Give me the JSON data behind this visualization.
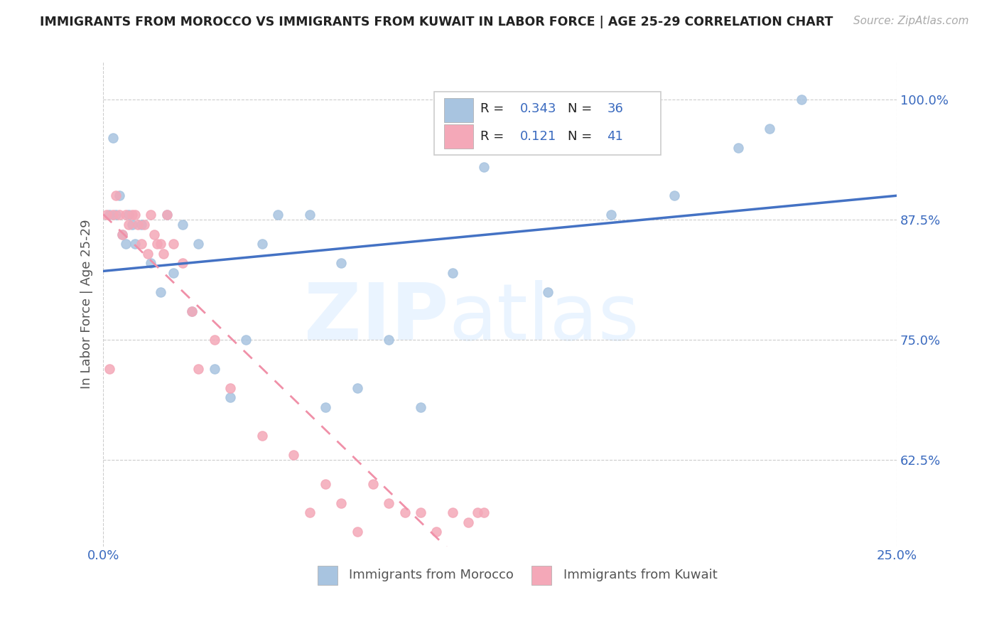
{
  "title": "IMMIGRANTS FROM MOROCCO VS IMMIGRANTS FROM KUWAIT IN LABOR FORCE | AGE 25-29 CORRELATION CHART",
  "source": "Source: ZipAtlas.com",
  "ylabel": "In Labor Force | Age 25-29",
  "xlim": [
    0.0,
    0.25
  ],
  "ylim": [
    0.535,
    1.04
  ],
  "yticks": [
    0.625,
    0.75,
    0.875,
    1.0
  ],
  "ytick_labels": [
    "62.5%",
    "75.0%",
    "87.5%",
    "100.0%"
  ],
  "xticks": [
    0.0,
    0.25
  ],
  "xtick_labels": [
    "0.0%",
    "25.0%"
  ],
  "morocco_R": 0.343,
  "morocco_N": 36,
  "kuwait_R": 0.121,
  "kuwait_N": 41,
  "morocco_color": "#a8c4e0",
  "kuwait_color": "#f4a8b8",
  "morocco_line_color": "#4472c4",
  "kuwait_line_color": "#f090a8",
  "morocco_x": [
    0.002,
    0.003,
    0.004,
    0.005,
    0.006,
    0.007,
    0.008,
    0.009,
    0.01,
    0.012,
    0.015,
    0.018,
    0.02,
    0.022,
    0.025,
    0.028,
    0.03,
    0.035,
    0.04,
    0.045,
    0.05,
    0.055,
    0.065,
    0.07,
    0.075,
    0.08,
    0.09,
    0.1,
    0.11,
    0.12,
    0.14,
    0.16,
    0.18,
    0.2,
    0.21,
    0.22
  ],
  "morocco_y": [
    0.88,
    0.96,
    0.88,
    0.9,
    0.86,
    0.85,
    0.88,
    0.87,
    0.85,
    0.87,
    0.83,
    0.8,
    0.88,
    0.82,
    0.87,
    0.78,
    0.85,
    0.72,
    0.69,
    0.75,
    0.85,
    0.88,
    0.88,
    0.68,
    0.83,
    0.7,
    0.75,
    0.68,
    0.82,
    0.93,
    0.8,
    0.88,
    0.9,
    0.95,
    0.97,
    1.0
  ],
  "kuwait_x": [
    0.001,
    0.002,
    0.003,
    0.004,
    0.005,
    0.006,
    0.007,
    0.008,
    0.009,
    0.01,
    0.011,
    0.012,
    0.013,
    0.014,
    0.015,
    0.016,
    0.017,
    0.018,
    0.019,
    0.02,
    0.022,
    0.025,
    0.028,
    0.03,
    0.035,
    0.04,
    0.05,
    0.06,
    0.065,
    0.07,
    0.075,
    0.08,
    0.085,
    0.09,
    0.095,
    0.1,
    0.105,
    0.11,
    0.115,
    0.118,
    0.12
  ],
  "kuwait_y": [
    0.88,
    0.72,
    0.88,
    0.9,
    0.88,
    0.86,
    0.88,
    0.87,
    0.88,
    0.88,
    0.87,
    0.85,
    0.87,
    0.84,
    0.88,
    0.86,
    0.85,
    0.85,
    0.84,
    0.88,
    0.85,
    0.83,
    0.78,
    0.72,
    0.75,
    0.7,
    0.65,
    0.63,
    0.57,
    0.6,
    0.58,
    0.55,
    0.6,
    0.58,
    0.57,
    0.57,
    0.55,
    0.57,
    0.56,
    0.57,
    0.57
  ]
}
